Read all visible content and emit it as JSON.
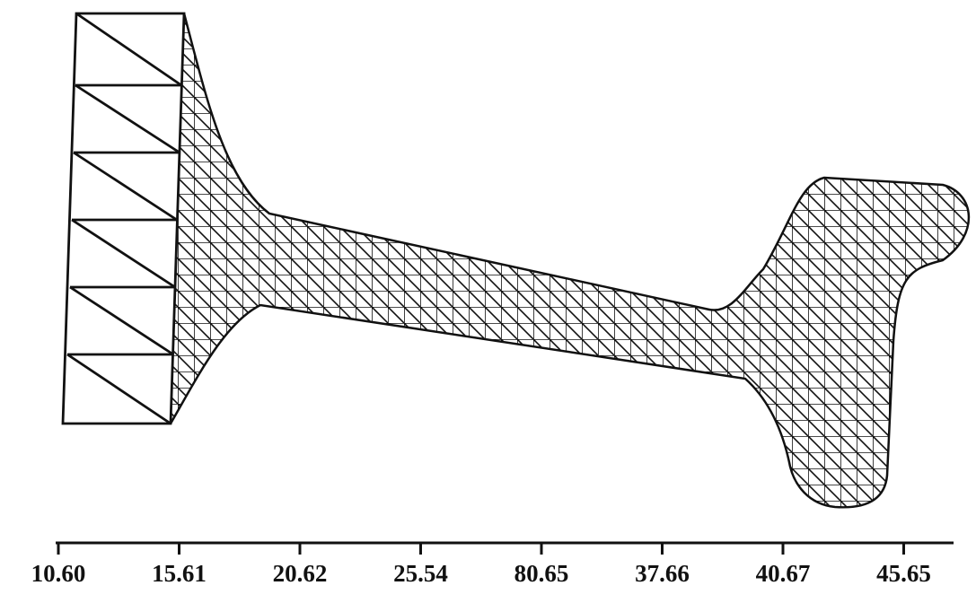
{
  "axis": {
    "labels": [
      "10.60",
      "15.61",
      "20.62",
      "25.54",
      "80.65",
      "37.66",
      "40.67",
      "45.65"
    ]
  }
}
